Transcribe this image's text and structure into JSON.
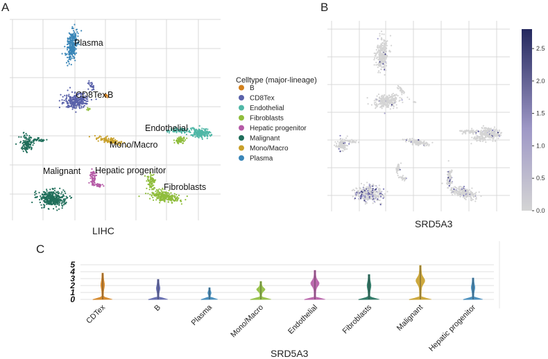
{
  "panels": {
    "a_letter": "A",
    "b_letter": "B",
    "c_letter": "C"
  },
  "colors": {
    "B": "#d2801c",
    "CD8Tex": "#5a62aa",
    "Endothelial": "#4fb7a6",
    "Fibroblasts": "#8fbd3c",
    "Hepatic progenitor": "#b55aa6",
    "Malignant": "#1f6e5a",
    "Mono/Macro": "#c8a02a",
    "Plasma": "#3a86b8",
    "grid": "#d8d8d8",
    "expr_low": "#d4d4d4",
    "expr_high": "#24285e"
  },
  "chart_data": [
    {
      "type": "scatter",
      "id": "umap-celltype",
      "title": "",
      "xlabel": "LIHC",
      "ylabel": "",
      "legend": {
        "title": "Celltype (major-lineage)",
        "placement": "right",
        "entries": [
          "B",
          "CD8Tex",
          "Endothelial",
          "Fibroblasts",
          "Hepatic progenitor",
          "Malignant",
          "Mono/Macro",
          "Plasma"
        ]
      },
      "cluster_labels": [
        "Plasma",
        "CD8Tex",
        "B",
        "Endothelial",
        "Mono/Macro",
        "Malignant",
        "Hepatic progenitor",
        "Fibroblasts"
      ],
      "grid": true
    },
    {
      "type": "scatter",
      "id": "umap-expression",
      "title": "",
      "xlabel": "SRD5A3",
      "colorbar": {
        "range": [
          0,
          2.8
        ],
        "ticks": [
          "0.0",
          "0.5",
          "1.0",
          "1.5",
          "2.0",
          "2.5"
        ]
      },
      "grid": true
    },
    {
      "type": "violin",
      "id": "violin-srd5a3",
      "xlabel": "SRD5A3",
      "ylim": [
        0,
        5
      ],
      "yticks": [
        "0",
        "1",
        "2",
        "3",
        "4",
        "5"
      ],
      "categories": [
        "CDTex",
        "B",
        "Plasma",
        "Mono/Macro",
        "Endothelial",
        "Fibroblasts",
        "Malignant",
        "Hepatic progenitor"
      ],
      "max_values": [
        3.8,
        2.9,
        1.7,
        2.6,
        4.2,
        3.6,
        4.9,
        3.1
      ],
      "series_colors": [
        "#d2801c",
        "#5a62aa",
        "#3a86b8",
        "#8fbd3c",
        "#b55aa6",
        "#1f6e5a",
        "#c8a02a",
        "#3a86b8"
      ]
    }
  ]
}
